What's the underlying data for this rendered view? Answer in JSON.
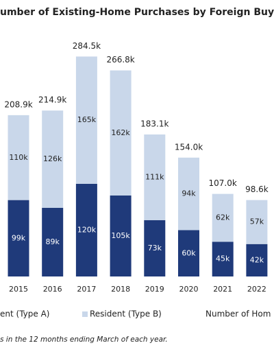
{
  "chart_data": {
    "type": "stacked_bar",
    "title": "umber of Existing-Home Purchases by Foreign Buye",
    "categories": [
      "2015",
      "2016",
      "2017",
      "2018",
      "2019",
      "2020",
      "2021",
      "2022"
    ],
    "series": [
      {
        "name": "ent (Type A)",
        "color": "#1f3a7a",
        "values": [
          99,
          89,
          120,
          105,
          73,
          60,
          45,
          42
        ],
        "value_labels": [
          "99k",
          "89k",
          "120k",
          "105k",
          "73k",
          "60k",
          "45k",
          "42k"
        ]
      },
      {
        "name": "Resident (Type B)",
        "color": "#c9d7ea",
        "values": [
          110,
          126,
          165,
          162,
          111,
          94,
          62,
          57
        ],
        "value_labels": [
          "110k",
          "126k",
          "165k",
          "162k",
          "111k",
          "94k",
          "62k",
          "57k"
        ]
      }
    ],
    "totals": {
      "name": "Number of Hom",
      "values": [
        208.9,
        214.9,
        284.5,
        266.8,
        183.1,
        154.0,
        107.0,
        98.6
      ],
      "value_labels": [
        "208.9k",
        "214.9k",
        "284.5k",
        "266.8k",
        "183.1k",
        "154.0k",
        "107.0k",
        "98.6k"
      ]
    },
    "footnote": "s in the 12 months ending March of each year."
  }
}
